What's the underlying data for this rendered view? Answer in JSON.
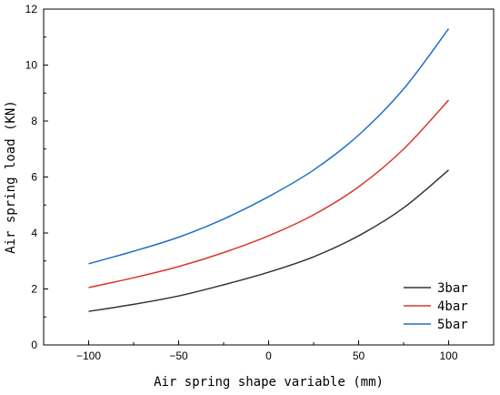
{
  "chart_data": {
    "type": "line",
    "title": "",
    "xlabel": "Air spring shape variable (mm)",
    "ylabel": "Air spring load (KN)",
    "xlim": [
      -125,
      125
    ],
    "ylim": [
      0,
      12
    ],
    "x_ticks": [
      -100,
      -50,
      0,
      50,
      100
    ],
    "y_ticks": [
      0,
      2,
      4,
      6,
      8,
      10,
      12
    ],
    "grid": false,
    "legend_position": "bottom-right",
    "x": [
      -100,
      -75,
      -50,
      -25,
      0,
      25,
      50,
      75,
      100
    ],
    "series": [
      {
        "name": "3bar",
        "color": "#333333",
        "values": [
          1.2,
          1.45,
          1.75,
          2.15,
          2.6,
          3.15,
          3.9,
          4.9,
          6.25
        ]
      },
      {
        "name": "4bar",
        "color": "#d9382b",
        "values": [
          2.05,
          2.4,
          2.8,
          3.3,
          3.9,
          4.65,
          5.65,
          7.0,
          8.75
        ]
      },
      {
        "name": "5bar",
        "color": "#1f6fc9",
        "values": [
          2.9,
          3.35,
          3.85,
          4.5,
          5.3,
          6.25,
          7.5,
          9.15,
          11.3
        ]
      }
    ]
  }
}
